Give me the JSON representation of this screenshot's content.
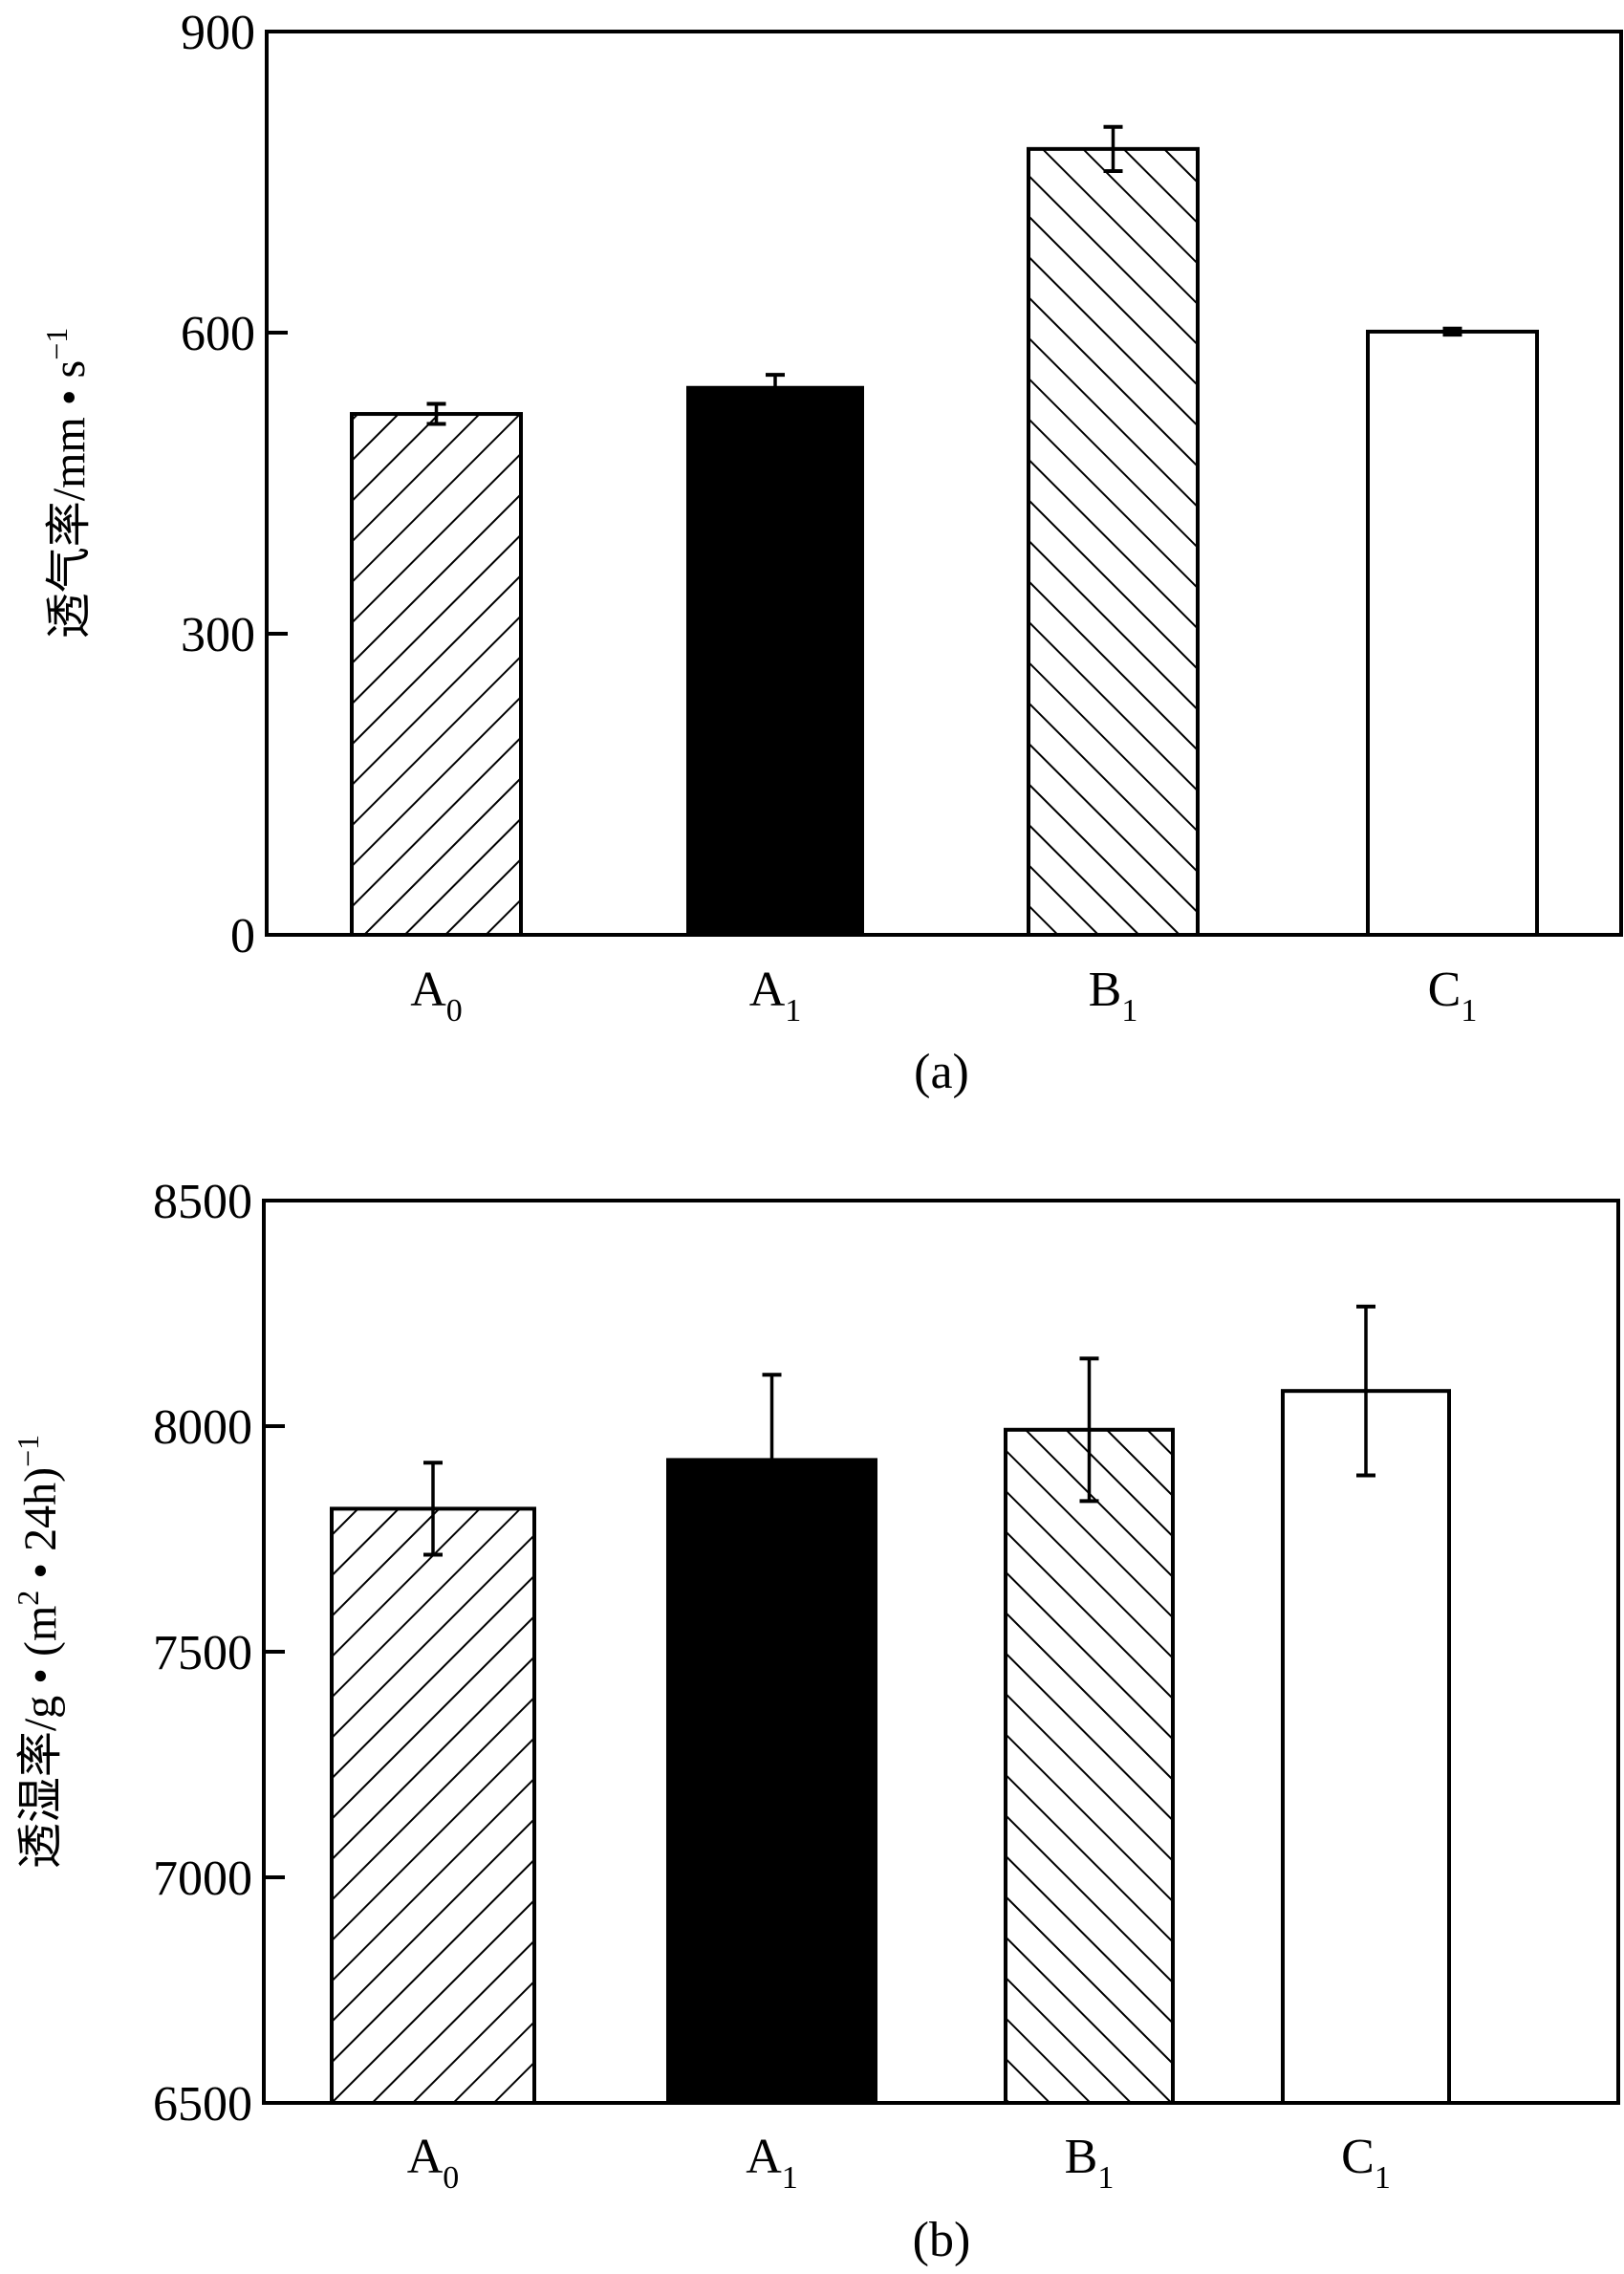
{
  "figure": {
    "panels": [
      "(a)",
      "(b)"
    ]
  },
  "chart_data": [
    {
      "type": "bar",
      "panel_label": "(a)",
      "title": "",
      "xlabel": "",
      "ylabel": "透气率/mm • s⁻¹",
      "ylabel_parts": {
        "main": "透气率/mm • s",
        "sup": "−1"
      },
      "ylim": [
        0,
        900
      ],
      "yticks": [
        0,
        300,
        600,
        900
      ],
      "grid": false,
      "categories": [
        {
          "base": "A",
          "sub": "0"
        },
        {
          "base": "A",
          "sub": "1"
        },
        {
          "base": "B",
          "sub": "1"
        },
        {
          "base": "C",
          "sub": "1"
        }
      ],
      "category_names": [
        "A0",
        "A1",
        "B1",
        "C1"
      ],
      "values": [
        519,
        545,
        783,
        601
      ],
      "errors": [
        10,
        13,
        22,
        3
      ],
      "fills": [
        "hatch-forward",
        "solid",
        "hatch-back",
        "empty"
      ],
      "colors": {
        "stroke": "#000000",
        "solid": "#000000",
        "background": "#ffffff"
      }
    },
    {
      "type": "bar",
      "panel_label": "(b)",
      "title": "",
      "xlabel": "",
      "ylabel": "透湿率/g • (m² • 24h)⁻¹",
      "ylabel_parts": {
        "main": "透湿率/g • (m",
        "sup1": "2",
        "mid": " • 24h)",
        "sup2": "−1"
      },
      "ylim": [
        6500,
        8500
      ],
      "yticks": [
        6500,
        7000,
        7500,
        8000,
        8500
      ],
      "grid": false,
      "categories": [
        {
          "base": "A",
          "sub": "0"
        },
        {
          "base": "A",
          "sub": "1"
        },
        {
          "base": "B",
          "sub": "1"
        },
        {
          "base": "C",
          "sub": "1"
        }
      ],
      "category_names": [
        "A0",
        "A1",
        "B1",
        "C1"
      ],
      "values": [
        7817,
        7925,
        7992,
        8078
      ],
      "errors": [
        102,
        189,
        158,
        187
      ],
      "fills": [
        "hatch-forward",
        "solid",
        "hatch-back",
        "empty"
      ],
      "colors": {
        "stroke": "#000000",
        "solid": "#000000",
        "background": "#ffffff"
      }
    }
  ]
}
